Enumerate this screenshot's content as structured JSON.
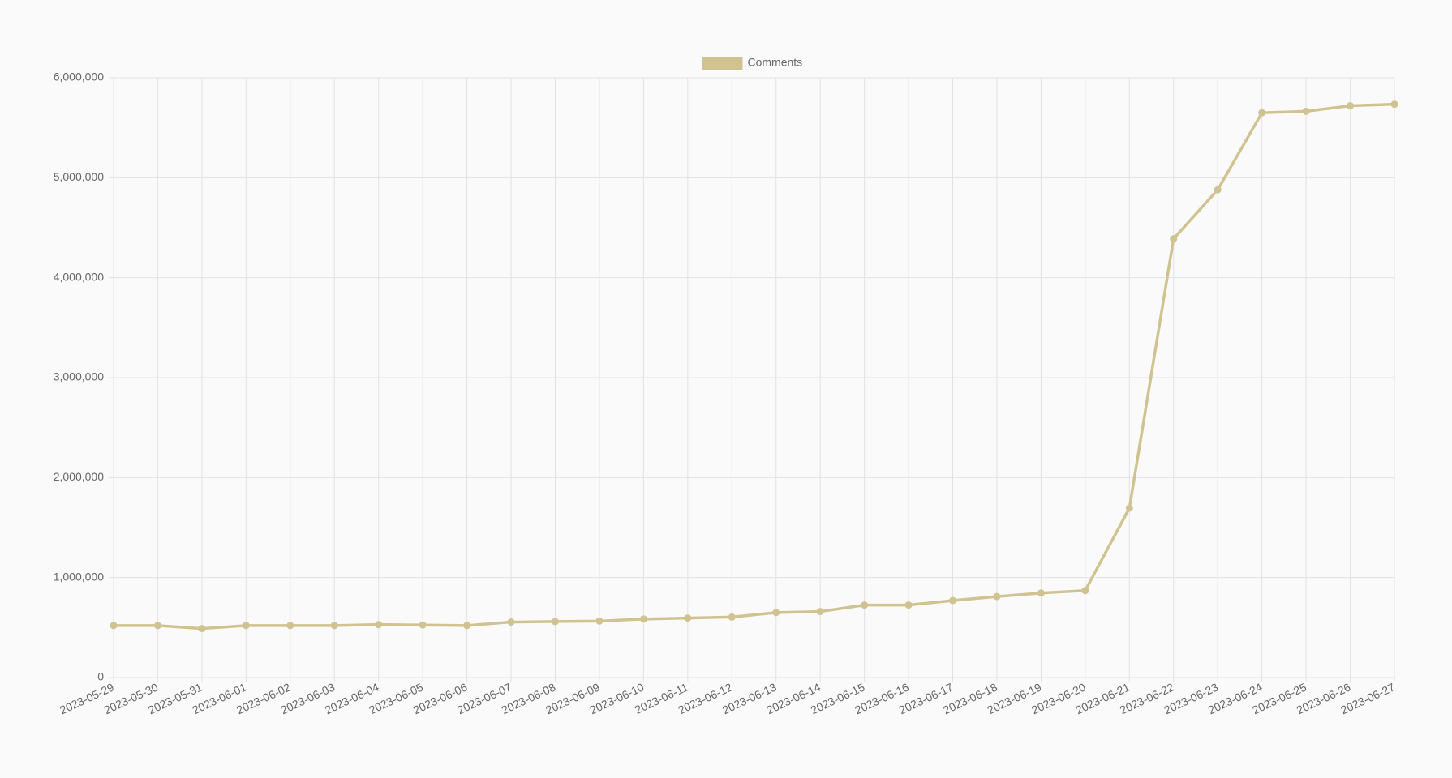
{
  "chart_data": {
    "type": "line",
    "categories": [
      "2023-05-29",
      "2023-05-30",
      "2023-05-31",
      "2023-06-01",
      "2023-06-02",
      "2023-06-03",
      "2023-06-04",
      "2023-06-05",
      "2023-06-06",
      "2023-06-07",
      "2023-06-08",
      "2023-06-09",
      "2023-06-10",
      "2023-06-11",
      "2023-06-12",
      "2023-06-13",
      "2023-06-14",
      "2023-06-15",
      "2023-06-16",
      "2023-06-17",
      "2023-06-18",
      "2023-06-19",
      "2023-06-20",
      "2023-06-21",
      "2023-06-22",
      "2023-06-23",
      "2023-06-24",
      "2023-06-25",
      "2023-06-26",
      "2023-06-27"
    ],
    "series": [
      {
        "name": "Comments",
        "color": "#d0c391",
        "values": [
          520000,
          520000,
          490000,
          520000,
          520000,
          520000,
          530000,
          525000,
          520000,
          555000,
          560000,
          565000,
          585000,
          595000,
          605000,
          650000,
          660000,
          725000,
          725000,
          770000,
          810000,
          845000,
          870000,
          1695000,
          4390000,
          4880000,
          5650000,
          5665000,
          5720000,
          5735000
        ]
      }
    ],
    "ylim": [
      0,
      6000000
    ],
    "yticks": [
      0,
      {
        "value": 1000000,
        "label": "1,000,000"
      },
      {
        "value": 2000000,
        "label": "2,000,000"
      },
      {
        "value": 3000000,
        "label": "3,000,000"
      },
      {
        "value": 4000000,
        "label": "4,000,000"
      },
      {
        "value": 5000000,
        "label": "5,000,000"
      },
      {
        "value": 6000000,
        "label": "6,000,000"
      }
    ],
    "grid": true,
    "legend": "top"
  }
}
